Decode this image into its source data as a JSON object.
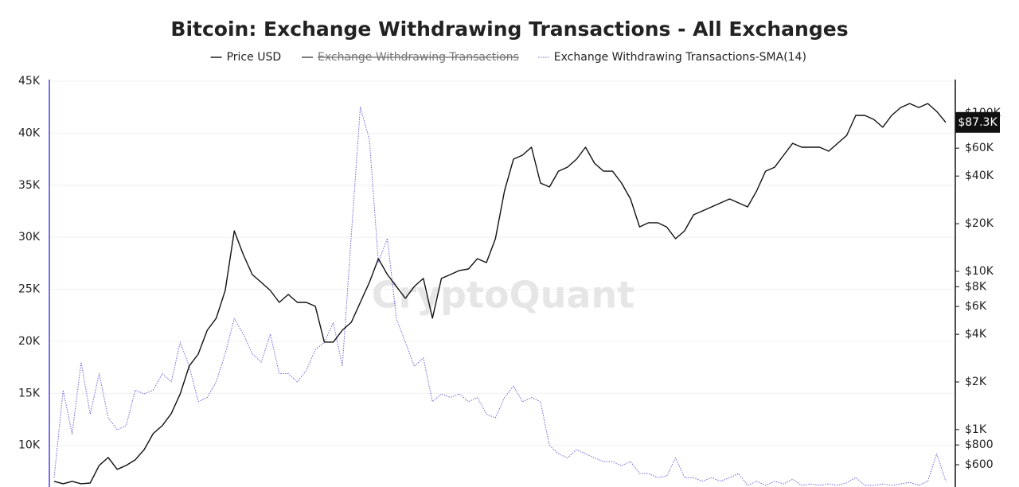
{
  "chart_data": {
    "type": "line",
    "title": "Bitcoin: Exchange Withdrawing Transactions - All Exchanges",
    "watermark": "CryptoQuant",
    "grid": true,
    "y2log": true,
    "categories": [
      null,
      null,
      null,
      null,
      null,
      null,
      null,
      null,
      null,
      null,
      null,
      null,
      null,
      null,
      null,
      null,
      null,
      null,
      null,
      null,
      null,
      null,
      null,
      null,
      null,
      null,
      null,
      null,
      null,
      null,
      null,
      null,
      null,
      null,
      null,
      null,
      null,
      null,
      null,
      null,
      null,
      null,
      null,
      null,
      null,
      null,
      null,
      null,
      null,
      null,
      null,
      null,
      null,
      null,
      null,
      null,
      null,
      null,
      null,
      null,
      null,
      null,
      null,
      null,
      null,
      null,
      null,
      null,
      null,
      null,
      null,
      null,
      null,
      null,
      null,
      null,
      null,
      null,
      null,
      null,
      null,
      null,
      null,
      null,
      null,
      null,
      null,
      null,
      null,
      null,
      null,
      null,
      null,
      null,
      null,
      null,
      null,
      null,
      null,
      null
    ],
    "ylim": [
      6000,
      45000
    ],
    "yticks": [
      {
        "value": 10000,
        "label": "10K"
      },
      {
        "value": 15000,
        "label": "15K"
      },
      {
        "value": 20000,
        "label": "20K"
      },
      {
        "value": 25000,
        "label": "25K"
      },
      {
        "value": 30000,
        "label": "30K"
      },
      {
        "value": 35000,
        "label": "35K"
      },
      {
        "value": 40000,
        "label": "40K"
      },
      {
        "value": 45000,
        "label": "45K"
      }
    ],
    "y2lim": [
      434,
      159000
    ],
    "y2ticks": [
      {
        "value": 600,
        "label": "$600"
      },
      {
        "value": 800,
        "label": "$800"
      },
      {
        "value": 1000,
        "label": "$1K"
      },
      {
        "value": 2000,
        "label": "$2K"
      },
      {
        "value": 4000,
        "label": "$4K"
      },
      {
        "value": 6000,
        "label": "$6K"
      },
      {
        "value": 8000,
        "label": "$8K"
      },
      {
        "value": 10000,
        "label": "$10K"
      },
      {
        "value": 20000,
        "label": "$20K"
      },
      {
        "value": 40000,
        "label": "$40K"
      },
      {
        "value": 60000,
        "label": "$60K"
      },
      {
        "value": 100000,
        "label": "$100K"
      }
    ],
    "series": [
      {
        "name": "Price USD",
        "color": "#111111",
        "axis": "y2",
        "style": "solid",
        "values": [
          471,
          455,
          471,
          455,
          460,
          594,
          667,
          561,
          594,
          644,
          748,
          944,
          1059,
          1262,
          1683,
          2523,
          3000,
          4246,
          5058,
          7568,
          18030,
          12760,
          9550,
          8511,
          7568,
          6368,
          7145,
          6368,
          6368,
          6012,
          3573,
          3573,
          4246,
          4764,
          6368,
          8511,
          12020,
          9550,
          8035,
          6745,
          8035,
          9016,
          5058,
          9016,
          9550,
          10120,
          10350,
          12020,
          11350,
          16070,
          32200,
          51150,
          54200,
          60800,
          36140,
          34120,
          42950,
          45500,
          51150,
          60800,
          48200,
          42950,
          42950,
          36140,
          28650,
          19100,
          20280,
          20280,
          19100,
          16070,
          18030,
          22750,
          24100,
          25530,
          27040,
          28650,
          27040,
          25530,
          32200,
          42950,
          45500,
          54200,
          64400,
          60800,
          60800,
          60800,
          57400,
          64400,
          72300,
          96600,
          96600,
          91200,
          81300,
          96600,
          108400,
          114800,
          108400,
          114800,
          102300,
          87300
        ],
        "value_labels": [
          null,
          null,
          null,
          null,
          null,
          null,
          null,
          null,
          null,
          null,
          null,
          null,
          null,
          null,
          null,
          null,
          null,
          null,
          null,
          null,
          null,
          null,
          null,
          null,
          null,
          null,
          null,
          null,
          null,
          null,
          null,
          null,
          null,
          null,
          null,
          null,
          null,
          null,
          null,
          null,
          null,
          null,
          null,
          null,
          null,
          null,
          null,
          null,
          null,
          null,
          null,
          null,
          null,
          null,
          null,
          null,
          null,
          null,
          null,
          null,
          null,
          null,
          null,
          null,
          null,
          null,
          null,
          null,
          null,
          null,
          null,
          null,
          null,
          null,
          null,
          null,
          null,
          null,
          null,
          null,
          null,
          null,
          null,
          null,
          null,
          null,
          null,
          null,
          null,
          null,
          null,
          null,
          null,
          null,
          null,
          null,
          null,
          null,
          null,
          "$87.3K"
        ]
      },
      {
        "name": "Exchange Withdrawing Transactions",
        "color": "#555555",
        "hidden": true,
        "style": "solid"
      },
      {
        "name": "Exchange Withdrawing Transactions-SMA(14)",
        "color": "#6f63d9",
        "style": "dotted",
        "values": [
          6900,
          15300,
          11100,
          18000,
          13000,
          16900,
          12650,
          11500,
          11900,
          15300,
          14950,
          15300,
          16900,
          16100,
          19900,
          17600,
          14200,
          14600,
          16100,
          18800,
          22200,
          20700,
          18800,
          18000,
          20700,
          16900,
          16900,
          16100,
          17200,
          19200,
          19900,
          21800,
          17600,
          30200,
          42500,
          39400,
          27600,
          29900,
          22200,
          19900,
          17600,
          18400,
          14200,
          14950,
          14600,
          14950,
          14200,
          14600,
          13000,
          12650,
          14600,
          15700,
          14200,
          14600,
          14200,
          10000,
          9200,
          8800,
          9600,
          9200,
          8800,
          8450,
          8450,
          8050,
          8450,
          7300,
          7300,
          6900,
          7050,
          8800,
          6900,
          6900,
          6550,
          6900,
          6550,
          6900,
          7300,
          6150,
          6550,
          6150,
          6550,
          6300,
          6750,
          6150,
          6300,
          6150,
          6300,
          6150,
          6400,
          6900,
          6150,
          6150,
          6300,
          6150,
          6300,
          6450,
          6150,
          6550,
          9200,
          6550
        ]
      }
    ]
  }
}
